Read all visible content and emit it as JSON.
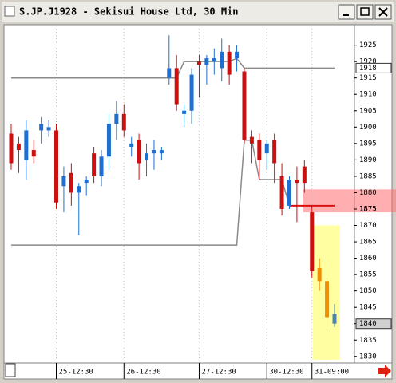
{
  "chart_data": {
    "type": "candlestick",
    "title": "S.JP.J1928 - Sekisui House Ltd, 30 Min",
    "categories": [
      null,
      null,
      null,
      null,
      null,
      null,
      "25-12:30",
      null,
      null,
      null,
      null,
      null,
      null,
      null,
      null,
      "26-12:30",
      null,
      null,
      null,
      null,
      null,
      null,
      null,
      null,
      null,
      "27-12:30",
      null,
      null,
      null,
      null,
      null,
      null,
      null,
      null,
      "30-12:30",
      null,
      null,
      null,
      null,
      null,
      "31-09:00",
      null,
      null,
      null
    ],
    "open": [
      1898,
      1895,
      1890,
      1893,
      1899,
      1899,
      1899,
      1882,
      1886,
      1880,
      1883,
      1892,
      1885,
      1891,
      1901,
      1904,
      1894,
      1896,
      1890,
      1892,
      1892,
      1915,
      1918,
      1904,
      1905,
      1920,
      1919,
      1920,
      1918,
      1923,
      1921,
      1917,
      1897,
      1896,
      1892,
      1896,
      1885,
      1876,
      1884,
      1888,
      1874,
      1857,
      1853,
      1840
    ],
    "high": [
      1901,
      1897,
      1902,
      1896,
      1903,
      1902,
      1901,
      1888,
      1889,
      1883,
      1885,
      1894,
      1893,
      1904,
      1908,
      1907,
      1897,
      1898,
      1895,
      1896,
      1894,
      1928,
      1922,
      1907,
      1918,
      1922,
      1922,
      1924,
      1927,
      1925,
      1925,
      1918,
      1899,
      1898,
      1896,
      1898,
      1889,
      1885,
      1888,
      1890,
      1876,
      1860,
      1854,
      1846
    ],
    "low": [
      1887,
      1886,
      1884,
      1889,
      1895,
      1897,
      1875,
      1874,
      1876,
      1867,
      1879,
      1883,
      1882,
      1887,
      1896,
      1897,
      1891,
      1884,
      1885,
      1887,
      1890,
      1913,
      1905,
      1900,
      1901,
      1909,
      1913,
      1916,
      1914,
      1913,
      1917,
      1895,
      1889,
      1884,
      1887,
      1883,
      1873,
      1875,
      1871,
      1880,
      1854,
      1850,
      1839,
      1839
    ],
    "close": [
      1889,
      1893,
      1899,
      1891,
      1901,
      1900,
      1877,
      1885,
      1880,
      1882,
      1884,
      1885,
      1891,
      1901,
      1904,
      1899,
      1895,
      1889,
      1892,
      1893,
      1893,
      1918,
      1907,
      1905,
      1916,
      1919,
      1921,
      1921,
      1923,
      1916,
      1923,
      1896,
      1895,
      1890,
      1895,
      1889,
      1875,
      1884,
      1883,
      1883,
      1856,
      1853,
      1842,
      1843
    ],
    "colors": [
      "#cc1010",
      "#cc1010",
      "#1f6fd0",
      "#cc1010",
      "#1f6fd0",
      "#1f6fd0",
      "#cc1010",
      "#1f6fd0",
      "#cc1010",
      "#1f6fd0",
      "#1f6fd0",
      "#cc1010",
      "#1f6fd0",
      "#1f6fd0",
      "#1f6fd0",
      "#cc1010",
      "#1f6fd0",
      "#cc1010",
      "#1f6fd0",
      "#1f6fd0",
      "#1f6fd0",
      "#1f6fd0",
      "#cc1010",
      "#1f6fd0",
      "#1f6fd0",
      "#cc1010",
      "#1f6fd0",
      "#1f6fd0",
      "#1f6fd0",
      "#cc1010",
      "#1f6fd0",
      "#cc1010",
      "#cc1010",
      "#cc1010",
      "#1f6fd0",
      "#cc1010",
      "#cc1010",
      "#1f6fd0",
      "#cc1010",
      "#cc1010",
      "#cc1010",
      "#f28c00",
      "#f28c00",
      "#4a86b0"
    ],
    "lines": [
      {
        "color": "#8a8a8a",
        "values": [
          1915,
          1915,
          1915,
          1915,
          1915,
          1915,
          1915,
          1915,
          1915,
          1915,
          1915,
          1915,
          1915,
          1915,
          1915,
          1915,
          1915,
          1915,
          1915,
          1915,
          1915,
          1915,
          1915,
          1920,
          1920,
          1920,
          1920,
          1920,
          1920,
          1920,
          1921,
          1918,
          1918,
          1918,
          1918,
          1918,
          1918,
          1918,
          1918,
          1918,
          1918,
          1918,
          1918,
          1918
        ]
      },
      {
        "color": "#8a8a8a",
        "values": [
          1864,
          1864,
          1864,
          1864,
          1864,
          1864,
          1864,
          1864,
          1864,
          1864,
          1864,
          1864,
          1864,
          1864,
          1864,
          1864,
          1864,
          1864,
          1864,
          1864,
          1864,
          1864,
          1864,
          1864,
          1864,
          1864,
          1864,
          1864,
          1864,
          1864,
          1864,
          1896,
          1896,
          1884,
          1884,
          1884,
          1884,
          1876,
          null,
          null,
          null,
          null,
          null,
          null
        ]
      },
      {
        "color": "#dd1010",
        "values": [
          null,
          null,
          null,
          null,
          null,
          null,
          null,
          null,
          null,
          null,
          null,
          null,
          null,
          null,
          null,
          null,
          null,
          null,
          null,
          null,
          null,
          null,
          null,
          null,
          null,
          null,
          null,
          null,
          null,
          null,
          null,
          null,
          null,
          null,
          null,
          null,
          null,
          1876,
          1876,
          1876,
          1876,
          1876,
          1876,
          1876
        ]
      }
    ],
    "zones": [
      {
        "ylim": [
          1874,
          1881
        ],
        "color": "rgba(255,110,110,0.55)"
      },
      {
        "ylim": [
          1829,
          1870
        ],
        "color": "rgba(255,255,110,0.65)"
      }
    ],
    "markers": [
      1918,
      1875,
      1840
    ],
    "ylim": [
      1828,
      1931
    ],
    "yticks": [
      1830,
      1835,
      1840,
      1845,
      1850,
      1855,
      1860,
      1865,
      1870,
      1875,
      1880,
      1885,
      1890,
      1895,
      1900,
      1905,
      1910,
      1915,
      1920,
      1925
    ],
    "grid": true
  }
}
